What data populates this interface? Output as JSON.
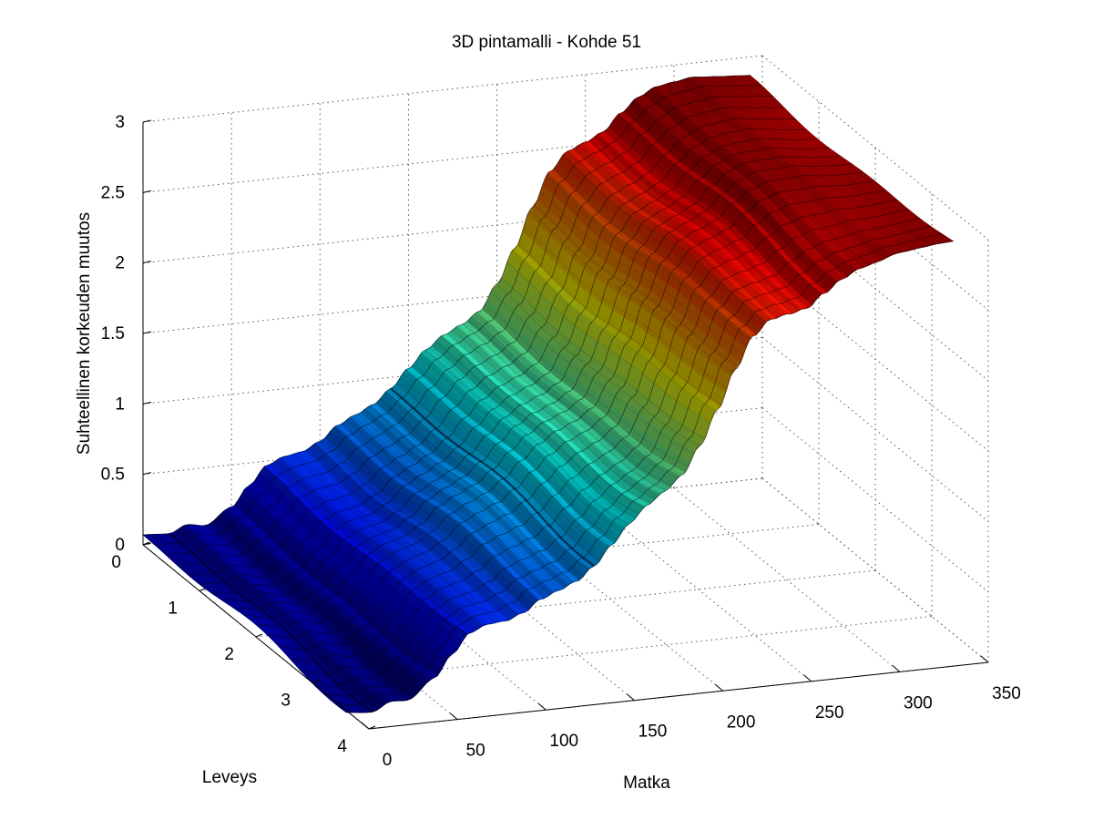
{
  "chart_data": {
    "type": "surface",
    "title": "3D pintamalli - Kohde 51",
    "xlabel": "Matka",
    "ylabel": "Leveys",
    "zlabel": "Suhteellinen korkeuden muutos",
    "xlim": [
      0,
      350
    ],
    "ylim": [
      0,
      4
    ],
    "zlim": [
      0,
      3
    ],
    "x_ticks": [
      0,
      50,
      100,
      150,
      200,
      250,
      300,
      350
    ],
    "y_ticks": [
      0,
      1,
      2,
      3,
      4
    ],
    "z_ticks": [
      0,
      0.5,
      1,
      1.5,
      2,
      2.5,
      3
    ],
    "z_tick_labels": [
      "0",
      "0.5",
      "1",
      "1.5",
      "2",
      "2.5",
      "3"
    ],
    "grid": true,
    "colormap": "jet",
    "surface_y_range": [
      0,
      3.6
    ],
    "surface_x_range": [
      0,
      343
    ],
    "profile_along_x": {
      "x": [
        0,
        15,
        25,
        35,
        50,
        60,
        70,
        80,
        90,
        100,
        110,
        120,
        130,
        140,
        150,
        160,
        170,
        180,
        190,
        200,
        210,
        220,
        230,
        240,
        250,
        260,
        270,
        280,
        290,
        300,
        310,
        320,
        330,
        343
      ],
      "z": [
        0.05,
        0.04,
        0.09,
        0.07,
        0.18,
        0.32,
        0.45,
        0.5,
        0.52,
        0.58,
        0.68,
        0.74,
        0.8,
        0.9,
        1.03,
        1.15,
        1.24,
        1.3,
        1.38,
        1.56,
        1.8,
        2.08,
        2.32,
        2.45,
        2.5,
        2.56,
        2.68,
        2.78,
        2.84,
        2.86,
        2.88,
        2.87,
        2.86,
        2.85
      ]
    },
    "width_variation": {
      "note": "mild ripples across width; the surface edge near Leveys=3.6 is slightly lower/wavier",
      "amplitude": 0.06
    }
  }
}
